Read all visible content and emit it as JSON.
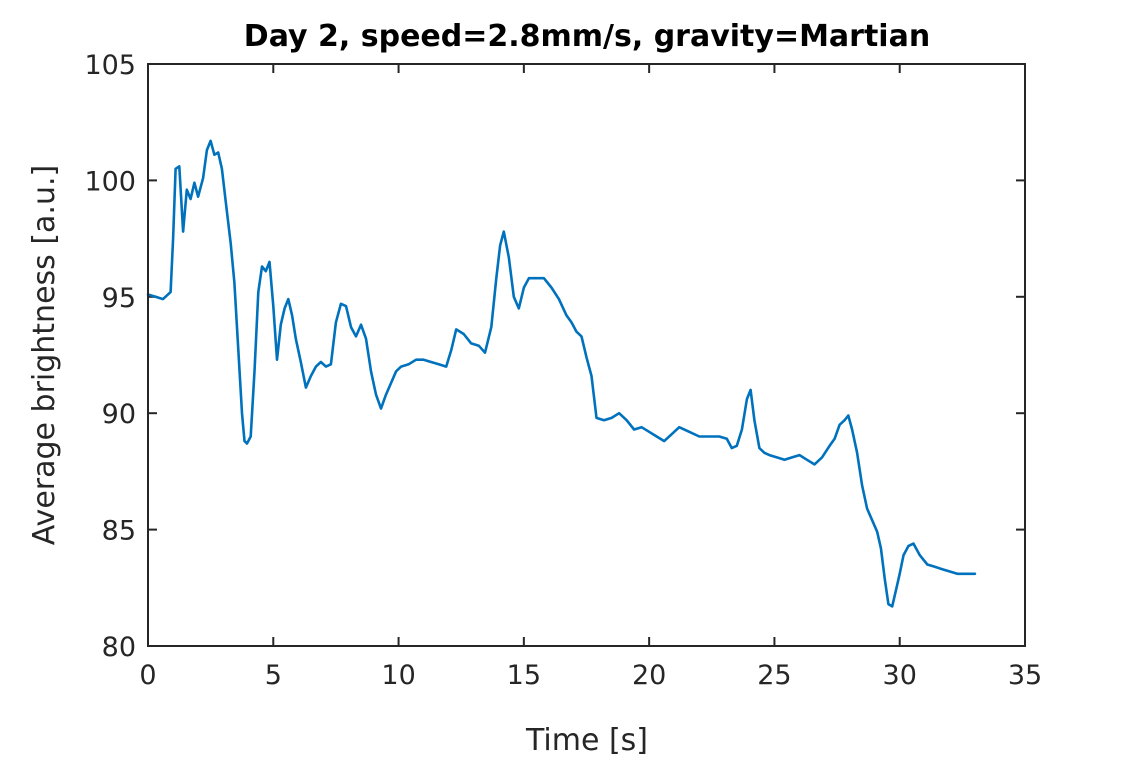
{
  "chart_data": {
    "type": "line",
    "title": "Day 2, speed=2.8mm/s, gravity=Martian",
    "xlabel": "Time [s]",
    "ylabel": "Average brightness [a.u.]",
    "xlim": [
      0,
      35
    ],
    "ylim": [
      80,
      105
    ],
    "xticks": [
      0,
      5,
      10,
      15,
      20,
      25,
      30,
      35
    ],
    "yticks": [
      80,
      85,
      90,
      95,
      100,
      105
    ],
    "grid": false,
    "series": [
      {
        "color": "#0072BD",
        "x": [
          0,
          0.3,
          0.6,
          0.9,
          1.0,
          1.1,
          1.25,
          1.4,
          1.55,
          1.7,
          1.85,
          2.0,
          2.2,
          2.35,
          2.5,
          2.65,
          2.8,
          2.95,
          3.1,
          3.3,
          3.45,
          3.6,
          3.75,
          3.85,
          3.95,
          4.1,
          4.25,
          4.4,
          4.55,
          4.7,
          4.85,
          5.0,
          5.15,
          5.3,
          5.45,
          5.6,
          5.75,
          5.9,
          6.1,
          6.3,
          6.5,
          6.7,
          6.9,
          7.1,
          7.3,
          7.5,
          7.7,
          7.9,
          8.1,
          8.3,
          8.5,
          8.7,
          8.9,
          9.1,
          9.3,
          9.5,
          9.7,
          9.9,
          10.1,
          10.4,
          10.7,
          11.0,
          11.3,
          11.6,
          11.9,
          12.1,
          12.3,
          12.6,
          12.9,
          13.2,
          13.45,
          13.7,
          13.9,
          14.05,
          14.2,
          14.4,
          14.6,
          14.8,
          15.0,
          15.2,
          15.5,
          15.8,
          16.1,
          16.4,
          16.7,
          16.9,
          17.1,
          17.3,
          17.5,
          17.7,
          17.9,
          18.2,
          18.5,
          18.8,
          19.1,
          19.4,
          19.7,
          20.0,
          20.3,
          20.6,
          20.9,
          21.2,
          21.6,
          22.0,
          22.4,
          22.8,
          23.1,
          23.3,
          23.5,
          23.7,
          23.9,
          24.05,
          24.2,
          24.4,
          24.6,
          24.8,
          25.1,
          25.4,
          25.7,
          26.0,
          26.3,
          26.6,
          26.9,
          27.2,
          27.4,
          27.6,
          27.8,
          27.95,
          28.1,
          28.3,
          28.5,
          28.7,
          28.9,
          29.1,
          29.25,
          29.4,
          29.55,
          29.7,
          29.85,
          30.0,
          30.15,
          30.35,
          30.55,
          30.8,
          31.1,
          31.4,
          31.7,
          32.0,
          32.3,
          32.6,
          33.0
        ],
        "y": [
          95.1,
          95.0,
          94.9,
          95.2,
          97.5,
          100.5,
          100.6,
          97.8,
          99.6,
          99.2,
          99.9,
          99.3,
          100.1,
          101.3,
          101.7,
          101.1,
          101.2,
          100.5,
          99.1,
          97.3,
          95.6,
          92.8,
          90.0,
          88.8,
          88.7,
          89.0,
          91.8,
          95.2,
          96.3,
          96.1,
          96.5,
          94.6,
          92.3,
          93.8,
          94.5,
          94.9,
          94.2,
          93.2,
          92.2,
          91.1,
          91.6,
          92.0,
          92.2,
          92.0,
          92.1,
          93.9,
          94.7,
          94.6,
          93.7,
          93.3,
          93.8,
          93.2,
          91.8,
          90.8,
          90.2,
          90.8,
          91.3,
          91.8,
          92.0,
          92.1,
          92.3,
          92.3,
          92.2,
          92.1,
          92.0,
          92.7,
          93.6,
          93.4,
          93.0,
          92.9,
          92.6,
          93.7,
          95.8,
          97.2,
          97.8,
          96.7,
          95.0,
          94.5,
          95.4,
          95.8,
          95.8,
          95.8,
          95.4,
          94.9,
          94.2,
          93.9,
          93.5,
          93.3,
          92.4,
          91.6,
          89.8,
          89.7,
          89.8,
          90.0,
          89.7,
          89.3,
          89.4,
          89.2,
          89.0,
          88.8,
          89.1,
          89.4,
          89.2,
          89.0,
          89.0,
          89.0,
          88.9,
          88.5,
          88.6,
          89.3,
          90.6,
          91.0,
          89.7,
          88.5,
          88.3,
          88.2,
          88.1,
          88.0,
          88.1,
          88.2,
          88.0,
          87.8,
          88.1,
          88.6,
          88.9,
          89.5,
          89.7,
          89.9,
          89.3,
          88.3,
          86.9,
          85.9,
          85.4,
          84.9,
          84.2,
          82.9,
          81.8,
          81.7,
          82.4,
          83.1,
          83.9,
          84.3,
          84.4,
          83.9,
          83.5,
          83.4,
          83.3,
          83.2,
          83.1,
          83.1,
          83.1
        ]
      }
    ]
  }
}
